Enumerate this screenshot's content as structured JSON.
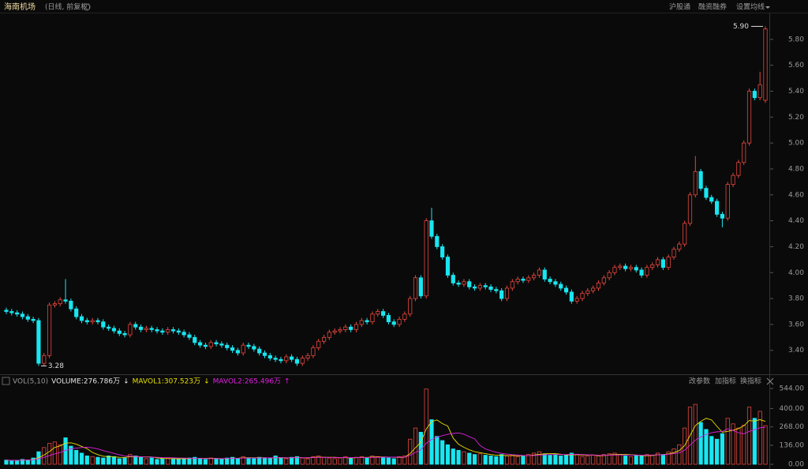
{
  "header": {
    "title": "海南机场",
    "subtitle": "(日线, 前复权)",
    "buttons": [
      "沪股通",
      "融资融券",
      "设置均线"
    ]
  },
  "chart_data": {
    "type": "candlestick",
    "up_color": "#e5473e",
    "down_color": "#19e6f0",
    "mavol1_color": "#e8e000",
    "mavol2_color": "#e020e0",
    "ylim": [
      3.24,
      6.0
    ],
    "yticks": [
      {
        "value": 3.4,
        "label": "3.40"
      },
      {
        "value": 3.6,
        "label": "3.60"
      },
      {
        "value": 3.8,
        "label": "3.80"
      },
      {
        "value": 4.0,
        "label": "4.00"
      },
      {
        "value": 4.2,
        "label": "4.20"
      },
      {
        "value": 4.4,
        "label": "4.40"
      },
      {
        "value": 4.6,
        "label": "4.60"
      },
      {
        "value": 4.8,
        "label": "4.80"
      },
      {
        "value": 5.0,
        "label": "5.00"
      },
      {
        "value": 5.2,
        "label": "5.20"
      },
      {
        "value": 5.4,
        "label": "5.40"
      },
      {
        "value": 5.6,
        "label": "5.60"
      },
      {
        "value": 5.8,
        "label": "5.80"
      }
    ],
    "max_label": {
      "value": 5.9,
      "label": "5.90"
    },
    "min_label": {
      "value": 3.28,
      "label": "3.28"
    },
    "open": [
      3.71,
      3.7,
      3.69,
      3.68,
      3.66,
      3.64,
      3.63,
      3.3,
      3.36,
      3.75,
      3.76,
      3.79,
      3.78,
      3.72,
      3.66,
      3.63,
      3.62,
      3.63,
      3.62,
      3.58,
      3.57,
      3.55,
      3.53,
      3.52,
      3.6,
      3.58,
      3.56,
      3.57,
      3.56,
      3.55,
      3.54,
      3.56,
      3.55,
      3.54,
      3.52,
      3.5,
      3.46,
      3.44,
      3.43,
      3.46,
      3.45,
      3.44,
      3.42,
      3.4,
      3.38,
      3.44,
      3.43,
      3.41,
      3.38,
      3.36,
      3.34,
      3.33,
      3.32,
      3.35,
      3.33,
      3.3,
      3.34,
      3.36,
      3.42,
      3.47,
      3.5,
      3.54,
      3.55,
      3.56,
      3.58,
      3.56,
      3.6,
      3.63,
      3.62,
      3.68,
      3.7,
      3.67,
      3.62,
      3.6,
      3.64,
      3.68,
      3.8,
      3.96,
      3.82,
      4.4,
      4.28,
      4.2,
      4.12,
      3.98,
      3.92,
      3.91,
      3.93,
      3.89,
      3.88,
      3.9,
      3.89,
      3.87,
      3.86,
      3.8,
      3.88,
      3.93,
      3.95,
      3.94,
      3.96,
      3.98,
      4.02,
      3.95,
      3.93,
      3.91,
      3.88,
      3.85,
      3.78,
      3.8,
      3.84,
      3.86,
      3.88,
      3.92,
      3.96,
      4.0,
      4.04,
      4.05,
      4.03,
      4.04,
      4.02,
      3.98,
      4.04,
      4.06,
      4.1,
      4.04,
      4.12,
      4.18,
      4.22,
      4.38,
      4.6,
      4.78,
      4.65,
      4.58,
      4.55,
      4.45,
      4.42,
      4.68,
      4.75,
      4.85,
      5.0,
      5.4,
      5.35,
      5.33
    ],
    "high": [
      3.73,
      3.72,
      3.71,
      3.7,
      3.68,
      3.66,
      3.65,
      3.38,
      3.77,
      3.78,
      3.81,
      3.95,
      3.8,
      3.74,
      3.68,
      3.65,
      3.65,
      3.65,
      3.64,
      3.6,
      3.59,
      3.57,
      3.55,
      3.62,
      3.62,
      3.6,
      3.59,
      3.59,
      3.58,
      3.57,
      3.58,
      3.58,
      3.57,
      3.56,
      3.54,
      3.52,
      3.48,
      3.46,
      3.48,
      3.48,
      3.47,
      3.46,
      3.44,
      3.42,
      3.46,
      3.46,
      3.45,
      3.43,
      3.4,
      3.38,
      3.36,
      3.35,
      3.37,
      3.37,
      3.35,
      3.36,
      3.38,
      3.44,
      3.49,
      3.52,
      3.56,
      3.57,
      3.58,
      3.6,
      3.6,
      3.62,
      3.65,
      3.65,
      3.7,
      3.72,
      3.72,
      3.69,
      3.64,
      3.66,
      3.7,
      3.82,
      3.98,
      3.98,
      4.42,
      4.5,
      4.3,
      4.22,
      4.14,
      4.0,
      3.94,
      3.95,
      3.95,
      3.91,
      3.92,
      3.92,
      3.91,
      3.89,
      3.88,
      3.9,
      3.95,
      3.97,
      3.97,
      3.98,
      4.0,
      4.04,
      4.04,
      3.97,
      3.95,
      3.93,
      3.9,
      3.87,
      3.82,
      3.86,
      3.88,
      3.9,
      3.94,
      3.98,
      4.02,
      4.06,
      4.07,
      4.07,
      4.06,
      4.06,
      4.04,
      4.06,
      4.08,
      4.12,
      4.12,
      4.14,
      4.2,
      4.24,
      4.4,
      4.62,
      4.9,
      4.8,
      4.67,
      4.6,
      4.57,
      4.47,
      4.7,
      4.77,
      4.87,
      5.02,
      5.42,
      5.42,
      5.55,
      5.9
    ],
    "low": [
      3.68,
      3.67,
      3.66,
      3.64,
      3.62,
      3.61,
      3.28,
      3.28,
      3.34,
      3.73,
      3.74,
      3.76,
      3.7,
      3.64,
      3.61,
      3.6,
      3.6,
      3.6,
      3.56,
      3.55,
      3.53,
      3.51,
      3.5,
      3.5,
      3.56,
      3.54,
      3.54,
      3.54,
      3.53,
      3.52,
      3.52,
      3.53,
      3.52,
      3.5,
      3.48,
      3.44,
      3.42,
      3.41,
      3.41,
      3.43,
      3.42,
      3.4,
      3.38,
      3.36,
      3.36,
      3.41,
      3.39,
      3.36,
      3.34,
      3.32,
      3.31,
      3.3,
      3.3,
      3.31,
      3.28,
      3.28,
      3.32,
      3.34,
      3.4,
      3.45,
      3.48,
      3.52,
      3.53,
      3.54,
      3.54,
      3.54,
      3.58,
      3.6,
      3.6,
      3.66,
      3.65,
      3.6,
      3.58,
      3.58,
      3.62,
      3.66,
      3.78,
      3.8,
      3.8,
      4.26,
      4.18,
      4.1,
      3.96,
      3.9,
      3.89,
      3.89,
      3.87,
      3.86,
      3.86,
      3.87,
      3.85,
      3.84,
      3.78,
      3.78,
      3.86,
      3.91,
      3.92,
      3.92,
      3.94,
      3.96,
      3.93,
      3.91,
      3.89,
      3.86,
      3.83,
      3.76,
      3.76,
      3.78,
      3.82,
      3.84,
      3.86,
      3.9,
      3.94,
      3.98,
      4.02,
      4.01,
      4.01,
      4.0,
      3.96,
      3.96,
      4.02,
      4.04,
      4.02,
      4.02,
      4.1,
      4.16,
      4.2,
      4.36,
      4.58,
      4.63,
      4.56,
      4.53,
      4.43,
      4.35,
      4.4,
      4.66,
      4.73,
      4.83,
      4.98,
      5.33,
      5.33,
      5.31
    ],
    "close": [
      3.7,
      3.69,
      3.68,
      3.66,
      3.64,
      3.63,
      3.3,
      3.36,
      3.75,
      3.76,
      3.79,
      3.78,
      3.72,
      3.66,
      3.63,
      3.62,
      3.63,
      3.62,
      3.58,
      3.57,
      3.55,
      3.53,
      3.52,
      3.6,
      3.58,
      3.56,
      3.57,
      3.56,
      3.55,
      3.54,
      3.56,
      3.55,
      3.54,
      3.52,
      3.5,
      3.46,
      3.44,
      3.43,
      3.46,
      3.45,
      3.44,
      3.42,
      3.4,
      3.38,
      3.44,
      3.43,
      3.41,
      3.38,
      3.36,
      3.34,
      3.33,
      3.32,
      3.35,
      3.33,
      3.3,
      3.34,
      3.36,
      3.42,
      3.47,
      3.5,
      3.54,
      3.55,
      3.56,
      3.58,
      3.56,
      3.6,
      3.63,
      3.62,
      3.68,
      3.7,
      3.67,
      3.62,
      3.6,
      3.64,
      3.68,
      3.8,
      3.96,
      3.82,
      4.4,
      4.28,
      4.2,
      4.12,
      3.98,
      3.92,
      3.91,
      3.93,
      3.89,
      3.88,
      3.9,
      3.89,
      3.87,
      3.86,
      3.8,
      3.88,
      3.93,
      3.95,
      3.94,
      3.96,
      3.98,
      4.02,
      3.95,
      3.93,
      3.91,
      3.88,
      3.85,
      3.78,
      3.8,
      3.84,
      3.86,
      3.88,
      3.92,
      3.96,
      4.0,
      4.04,
      4.05,
      4.03,
      4.04,
      4.02,
      3.98,
      4.04,
      4.06,
      4.1,
      4.04,
      4.12,
      4.18,
      4.22,
      4.38,
      4.6,
      4.78,
      4.65,
      4.58,
      4.55,
      4.45,
      4.42,
      4.68,
      4.75,
      4.85,
      5.0,
      5.4,
      5.35,
      5.45,
      5.88
    ],
    "volume_header": [
      {
        "text": "VOL(5,10)",
        "color": "#9a9a9a"
      },
      {
        "text": "VOLUME:276.786万",
        "color": "#e6e6e6"
      },
      {
        "text": "↓",
        "color": "#e6e6e6"
      },
      {
        "text": "MAVOL1:307.523万",
        "color": "#e8e000"
      },
      {
        "text": "↓",
        "color": "#e8e000"
      },
      {
        "text": "MAVOL2:265.496万",
        "color": "#e020e0"
      },
      {
        "text": "↑",
        "color": "#e020e0"
      }
    ],
    "volume_buttons": [
      "改参数",
      "加指标",
      "换指标"
    ],
    "vlim": [
      0,
      544
    ],
    "vticks": [
      {
        "value": 0,
        "label": "0.00"
      },
      {
        "value": 136,
        "label": "136.00"
      },
      {
        "value": 268,
        "label": "268.00"
      },
      {
        "value": 400,
        "label": "400.00"
      },
      {
        "value": 544,
        "label": "544.00"
      }
    ],
    "volume": [
      30,
      25,
      28,
      35,
      30,
      45,
      90,
      120,
      150,
      160,
      140,
      190,
      130,
      100,
      80,
      60,
      55,
      50,
      45,
      60,
      55,
      40,
      45,
      70,
      60,
      50,
      40,
      45,
      35,
      40,
      45,
      38,
      35,
      40,
      45,
      50,
      40,
      35,
      45,
      40,
      38,
      45,
      50,
      40,
      55,
      45,
      40,
      50,
      45,
      40,
      60,
      45,
      40,
      50,
      55,
      45,
      40,
      55,
      60,
      50,
      45,
      40,
      45,
      55,
      40,
      50,
      55,
      45,
      60,
      55,
      50,
      45,
      40,
      55,
      60,
      180,
      260,
      230,
      540,
      320,
      200,
      170,
      140,
      110,
      100,
      90,
      80,
      70,
      75,
      65,
      60,
      55,
      70,
      60,
      65,
      55,
      60,
      70,
      80,
      90,
      75,
      65,
      70,
      60,
      65,
      80,
      70,
      55,
      60,
      65,
      60,
      70,
      75,
      80,
      70,
      60,
      55,
      65,
      60,
      70,
      65,
      80,
      70,
      90,
      110,
      140,
      260,
      410,
      430,
      300,
      250,
      200,
      180,
      220,
      330,
      290,
      260,
      280,
      410,
      330,
      380,
      277
    ],
    "mavol1": [
      30,
      28,
      28,
      30,
      30,
      33,
      47,
      66,
      91,
      121,
      132,
      152,
      154,
      144,
      128,
      112,
      85,
      69,
      58,
      54,
      53,
      50,
      49,
      54,
      55,
      53,
      53,
      53,
      46,
      42,
      41,
      41,
      39,
      40,
      41,
      42,
      42,
      42,
      43,
      42,
      40,
      41,
      44,
      43,
      46,
      47,
      46,
      47,
      47,
      44,
      47,
      48,
      46,
      47,
      50,
      47,
      46,
      49,
      51,
      50,
      50,
      50,
      48,
      47,
      45,
      47,
      49,
      49,
      52,
      53,
      53,
      51,
      50,
      49,
      50,
      76,
      119,
      157,
      253,
      306,
      318,
      292,
      274,
      188,
      144,
      122,
      104,
      90,
      83,
      76,
      70,
      65,
      65,
      62,
      62,
      61,
      62,
      62,
      66,
      71,
      75,
      76,
      76,
      72,
      67,
      68,
      69,
      66,
      66,
      66,
      62,
      62,
      67,
      70,
      71,
      71,
      68,
      66,
      62,
      62,
      63,
      68,
      69,
      75,
      83,
      98,
      134,
      206,
      278,
      308,
      330,
      318,
      272,
      230,
      236,
      244,
      256,
      276,
      314,
      310,
      320,
      308
    ],
    "mavol2": [
      30,
      28,
      28,
      30,
      30,
      32,
      40,
      50,
      62,
      75,
      84,
      100,
      110,
      116,
      120,
      122,
      118,
      110,
      98,
      88,
      78,
      68,
      60,
      58,
      56,
      54,
      52,
      51,
      50,
      48,
      47,
      46,
      45,
      44,
      43,
      42,
      42,
      41,
      41,
      41,
      41,
      42,
      43,
      43,
      44,
      45,
      45,
      45,
      46,
      46,
      47,
      47,
      46,
      47,
      48,
      47,
      47,
      48,
      49,
      49,
      49,
      48,
      48,
      48,
      48,
      48,
      48,
      48,
      49,
      50,
      51,
      51,
      51,
      51,
      52,
      64,
      85,
      103,
      151,
      178,
      194,
      205,
      215,
      221,
      225,
      216,
      198,
      182,
      135,
      110,
      97,
      86,
      78,
      73,
      69,
      66,
      63,
      62,
      63,
      66,
      68,
      69,
      70,
      70,
      70,
      71,
      72,
      70,
      68,
      67,
      65,
      64,
      65,
      66,
      67,
      67,
      66,
      66,
      65,
      65,
      66,
      67,
      68,
      72,
      77,
      82,
      101,
      137,
      173,
      196,
      214,
      226,
      233,
      235,
      255,
      242,
      226,
      218,
      236,
      248,
      262,
      265
    ]
  }
}
